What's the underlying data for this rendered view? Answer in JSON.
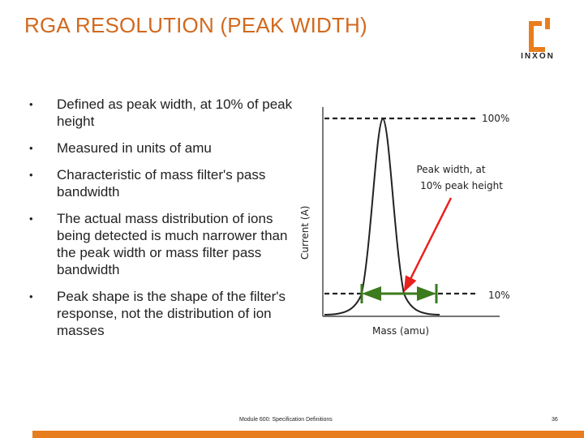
{
  "title": "RGA RESOLUTION (PEAK WIDTH)",
  "logo": {
    "text": "INXON",
    "color": "#e87d1e"
  },
  "bullets": [
    "Defined as peak width, at 10% of peak height",
    "Measured in units of amu",
    "Characteristic of mass filter's pass bandwidth",
    "The actual mass distribution of ions being detected is much narrower than the peak width or mass filter pass bandwidth",
    "Peak shape is the shape of the filter's response, not the distribution of ion masses"
  ],
  "diagram": {
    "y_axis_label": "Current (A)",
    "x_axis_label": "Mass (amu)",
    "top_label": "100%",
    "bottom_label": "10%",
    "annotation_line1": "Peak width, at",
    "annotation_line2": "10% peak height",
    "colors": {
      "arrow": "#e8201e",
      "width_arrow": "#3c7a1e",
      "curve": "#222222"
    }
  },
  "footer": {
    "text": "Module 600: Specification Definitions",
    "page": "36"
  }
}
